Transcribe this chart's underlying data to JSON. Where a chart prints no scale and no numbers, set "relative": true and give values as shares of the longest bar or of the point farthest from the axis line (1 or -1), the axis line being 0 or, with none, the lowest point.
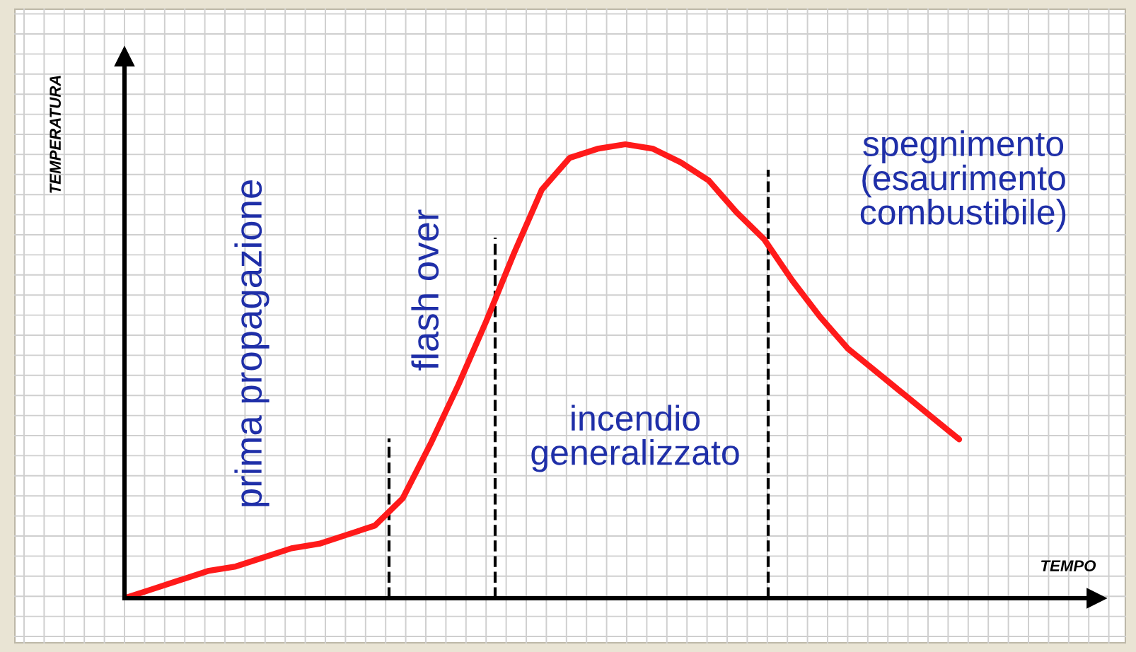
{
  "chart_data": {
    "type": "line",
    "relative": true,
    "xlabel": "TEMPO",
    "ylabel": "TEMPERATURA",
    "categories": [
      null,
      null,
      null,
      null,
      null,
      null,
      null,
      null,
      null,
      null,
      null,
      null,
      null,
      null,
      null,
      null,
      null,
      null,
      null,
      null,
      null,
      null,
      null,
      null,
      null,
      null,
      null,
      null,
      null,
      null,
      null
    ],
    "series": [
      {
        "color": "#ff1a1a",
        "values": [
          0,
          0.02,
          0.04,
          0.06,
          0.07,
          0.09,
          0.11,
          0.12,
          0.14,
          0.16,
          0.22,
          0.34,
          0.47,
          0.61,
          0.76,
          0.9,
          0.97,
          0.99,
          1.0,
          0.99,
          0.96,
          0.92,
          0.85,
          0.79,
          0.7,
          0.62,
          0.55,
          0.5,
          0.45,
          0.4,
          0.35
        ]
      }
    ],
    "annotations": [
      "prima propagazione",
      "flash over",
      "incendio\ngeneralizzato",
      "spegnimento\n(esaurimento\ncombustibile)"
    ],
    "grid": true,
    "marker": "none",
    "line_style": "solid"
  }
}
